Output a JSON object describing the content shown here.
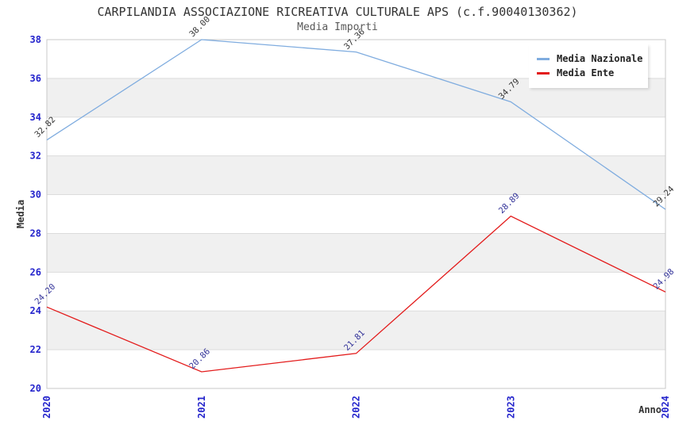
{
  "header": {
    "title": "CARPILANDIA ASSOCIAZIONE RICREATIVA CULTURALE APS (c.f.90040130362)",
    "subtitle": "Media Importi"
  },
  "legend": {
    "position": "top-right",
    "items": [
      {
        "label": "Media Nazionale",
        "color": "#7FACDF"
      },
      {
        "label": "Media Ente",
        "color": "#E31B1B"
      }
    ]
  },
  "chart_data": {
    "type": "line",
    "title": "CARPILANDIA ASSOCIAZIONE RICREATIVA CULTURALE APS (c.f.90040130362)",
    "subtitle": "Media Importi",
    "categories": [
      "2020",
      "2021",
      "2022",
      "2023",
      "2024"
    ],
    "series": [
      {
        "name": "Media Nazionale",
        "color": "#7FACDF",
        "label_color": "#333333",
        "values": [
          32.82,
          38.0,
          37.36,
          34.79,
          29.24
        ]
      },
      {
        "name": "Media Ente",
        "color": "#E31B1B",
        "label_color": "#333399",
        "values": [
          24.2,
          20.86,
          21.81,
          28.89,
          24.98
        ]
      }
    ],
    "xlabel": "Anno",
    "ylabel": "Media",
    "ylim": [
      20,
      38
    ],
    "ytick_step": 2,
    "yticks": [
      20,
      22,
      24,
      26,
      28,
      30,
      32,
      34,
      36,
      38
    ],
    "grid": true,
    "alternating_bands": true,
    "legend_position": "top-right",
    "colors": {
      "tick_label": "#2424CC",
      "band": "#F0F0F0",
      "grid_line": "#DCDCDC",
      "plot_border": "#C8C8C8",
      "axis_name": "#333333"
    }
  }
}
